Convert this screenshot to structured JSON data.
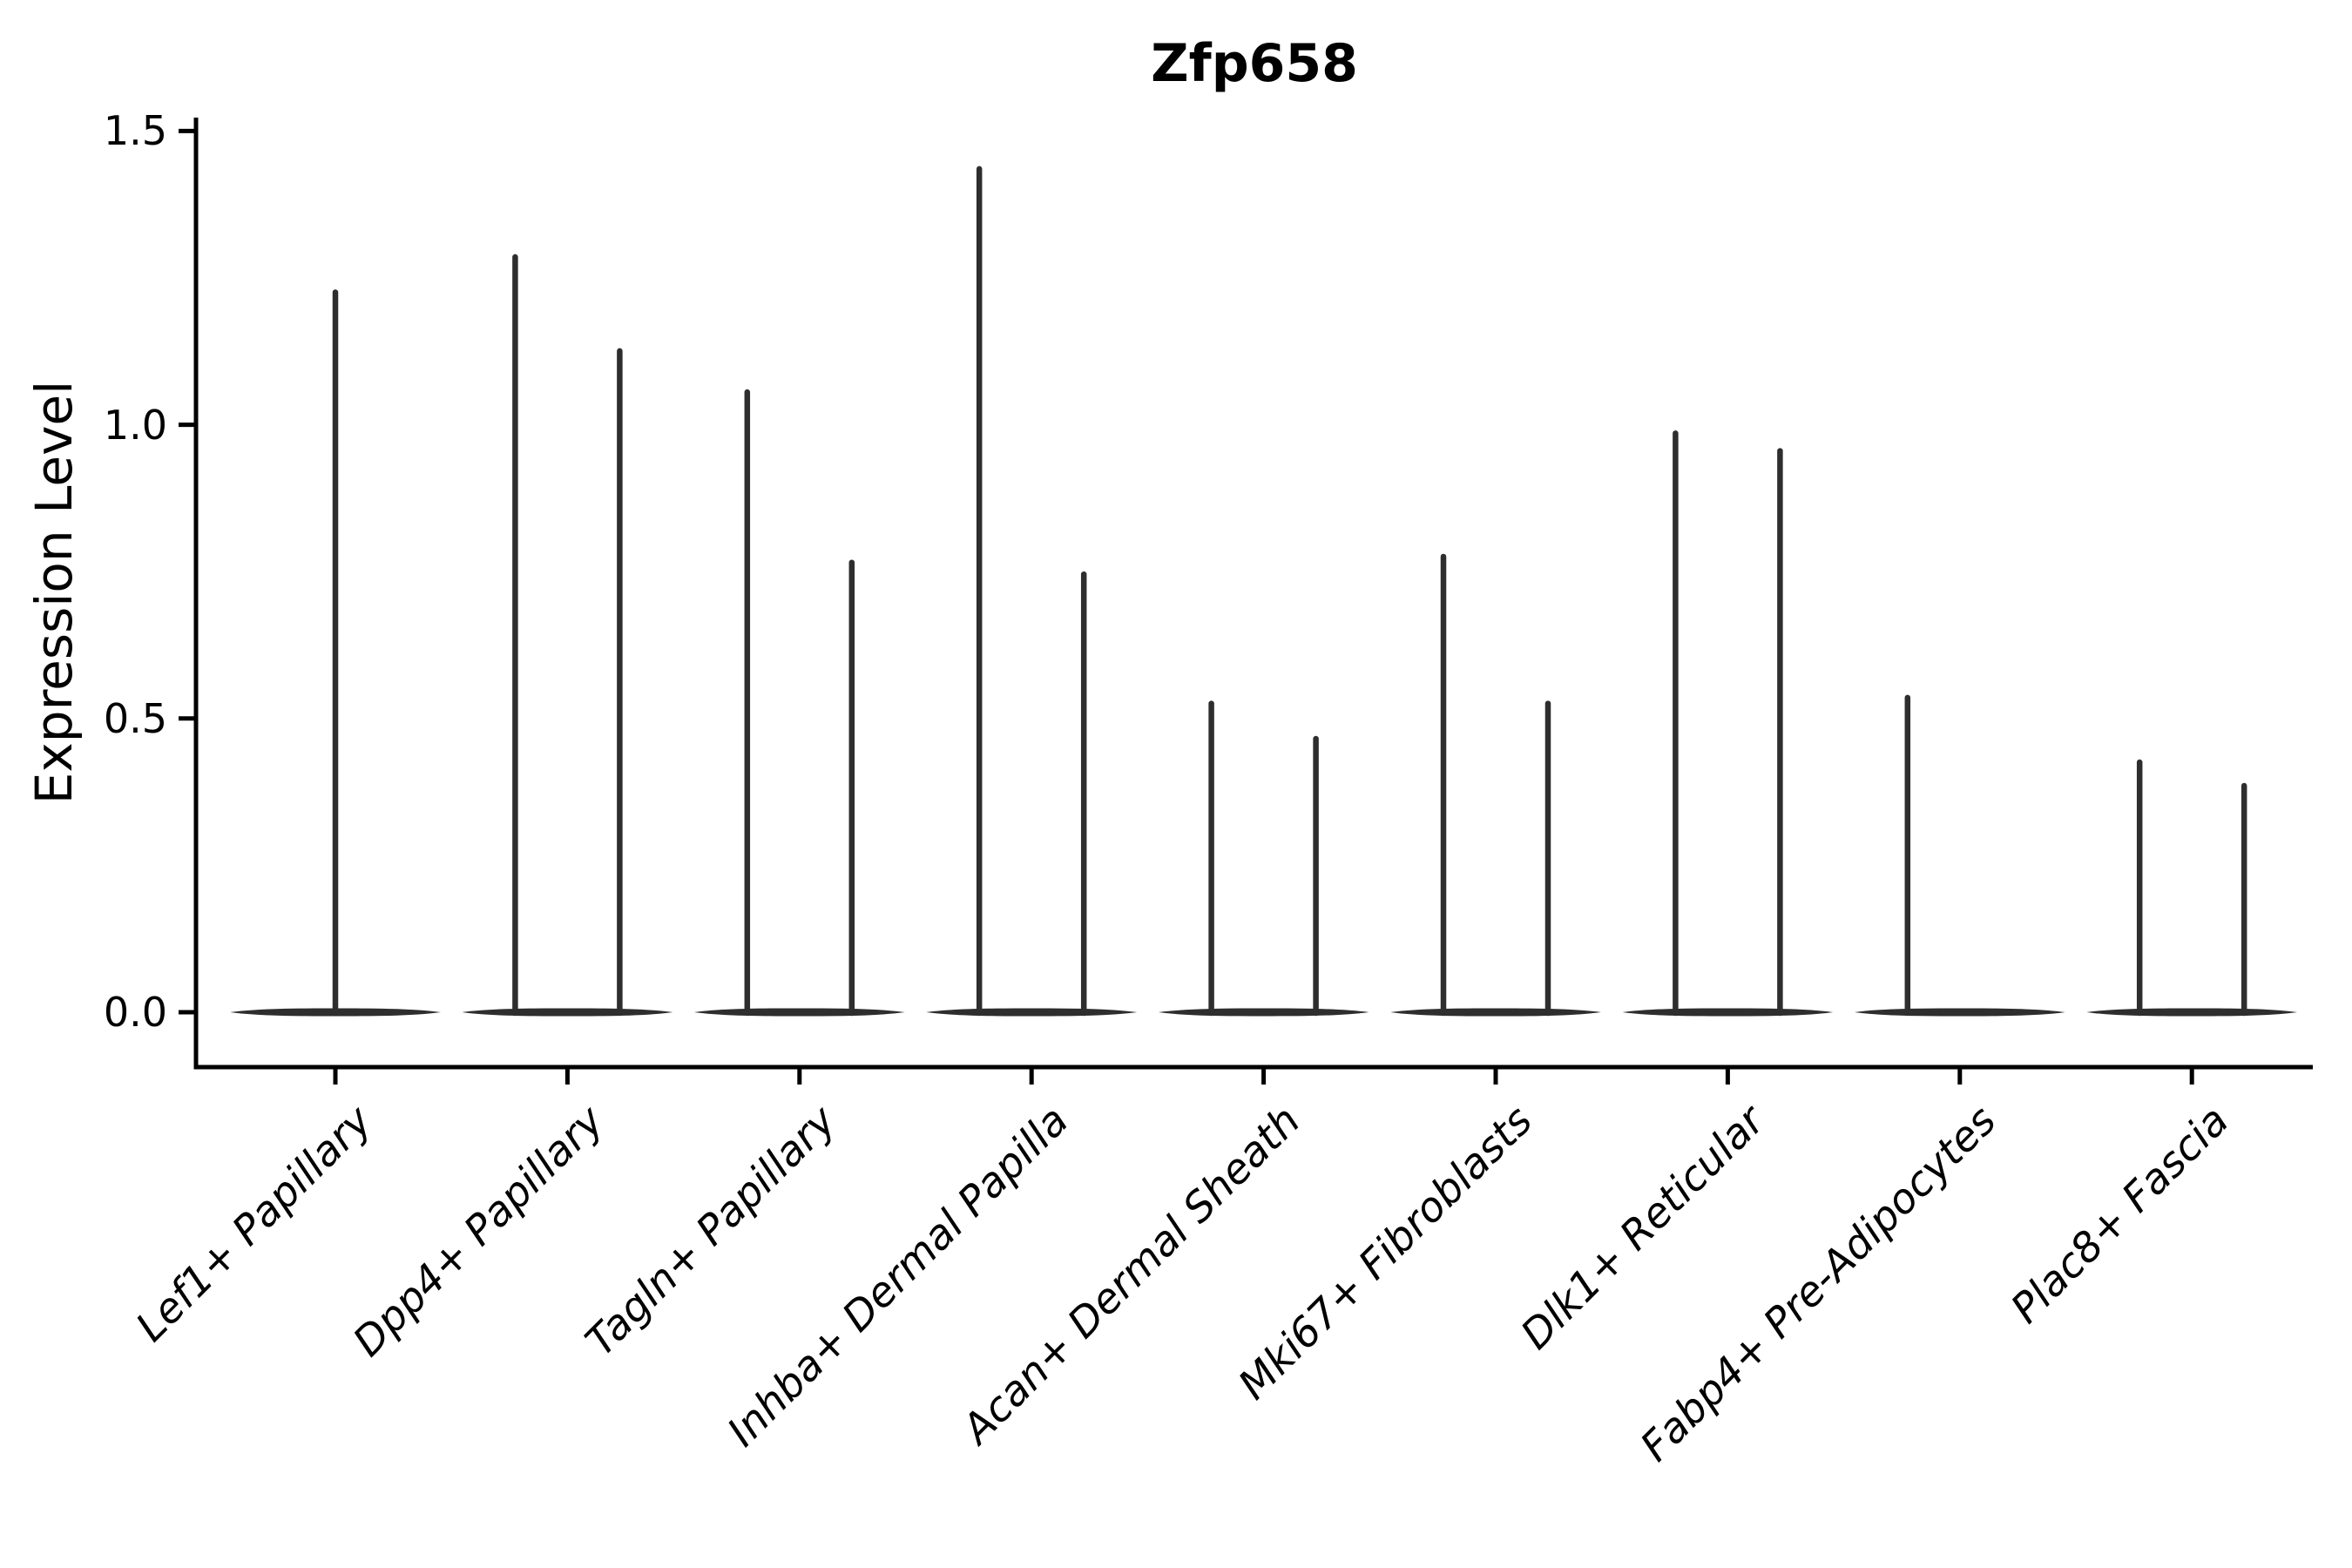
{
  "figure": {
    "title": "Zfp658",
    "background_color": "#ffffff"
  },
  "y_axis": {
    "label": "Expression Level",
    "tick_labels": [
      "1.5",
      "1.0",
      "0.5",
      "0.0"
    ],
    "tick_values": [
      1.5,
      1.0,
      0.5,
      0.0
    ]
  },
  "x_axis": {
    "categories": [
      "Lef1+ Papillary",
      "Dpp4+ Papillary",
      "Tagln+ Papillary",
      "Inhba+ Dermal Papilla",
      "Acan+ Dermal Sheath",
      "Mki67+ Fibroblasts",
      "Dlk1+ Reticular",
      "Fabp4+ Pre-Adipocytes",
      "Plac8+ Fascia"
    ]
  },
  "colors": {
    "violin": "#2e2e2e",
    "axis": "#000000",
    "text": "#000000",
    "background": "#ffffff"
  },
  "chart_data": {
    "type": "violin",
    "title": "Zfp658",
    "xlabel": "",
    "ylabel": "Expression Level",
    "ylim": [
      -0.09,
      1.57
    ],
    "yticks": [
      0.0,
      0.5,
      1.0,
      1.5
    ],
    "grid": false,
    "legend": "none",
    "note": "Zero-inflated single-cell expression violins: each violin has a wide flat density at 0 and a thin spike reaching its maximum expression value. Most categories contain two adjacent violins (left/right); Lef1+ Papillary has one centered violin; Fabp4+ Pre-Adipocytes has only the left spike.",
    "categories": [
      "Lef1+ Papillary",
      "Dpp4+ Papillary",
      "Tagln+ Papillary",
      "Inhba+ Dermal Papilla",
      "Acan+ Dermal Sheath",
      "Mki67+ Fibroblasts",
      "Dlk1+ Reticular",
      "Fabp4+ Pre-Adipocytes",
      "Plac8+ Fascia"
    ],
    "series": [
      {
        "category": "Lef1+ Papillary",
        "violins": [
          {
            "position": "center",
            "peak_expression": 1.23
          }
        ]
      },
      {
        "category": "Dpp4+ Papillary",
        "violins": [
          {
            "position": "left",
            "peak_expression": 1.29
          },
          {
            "position": "right",
            "peak_expression": 1.13
          }
        ]
      },
      {
        "category": "Tagln+ Papillary",
        "violins": [
          {
            "position": "left",
            "peak_expression": 1.06
          },
          {
            "position": "right",
            "peak_expression": 0.77
          }
        ]
      },
      {
        "category": "Inhba+ Dermal Papilla",
        "violins": [
          {
            "position": "left",
            "peak_expression": 1.44
          },
          {
            "position": "right",
            "peak_expression": 0.75
          }
        ]
      },
      {
        "category": "Acan+ Dermal Sheath",
        "violins": [
          {
            "position": "left",
            "peak_expression": 0.53
          },
          {
            "position": "right",
            "peak_expression": 0.47
          }
        ]
      },
      {
        "category": "Mki67+ Fibroblasts",
        "violins": [
          {
            "position": "left",
            "peak_expression": 0.78
          },
          {
            "position": "right",
            "peak_expression": 0.53
          }
        ]
      },
      {
        "category": "Dlk1+ Reticular",
        "violins": [
          {
            "position": "left",
            "peak_expression": 0.99
          },
          {
            "position": "right",
            "peak_expression": 0.96
          }
        ]
      },
      {
        "category": "Fabp4+ Pre-Adipocytes",
        "violins": [
          {
            "position": "left",
            "peak_expression": 0.54
          }
        ]
      },
      {
        "category": "Plac8+ Fascia",
        "violins": [
          {
            "position": "left",
            "peak_expression": 0.43
          },
          {
            "position": "right",
            "peak_expression": 0.39
          }
        ]
      }
    ]
  }
}
